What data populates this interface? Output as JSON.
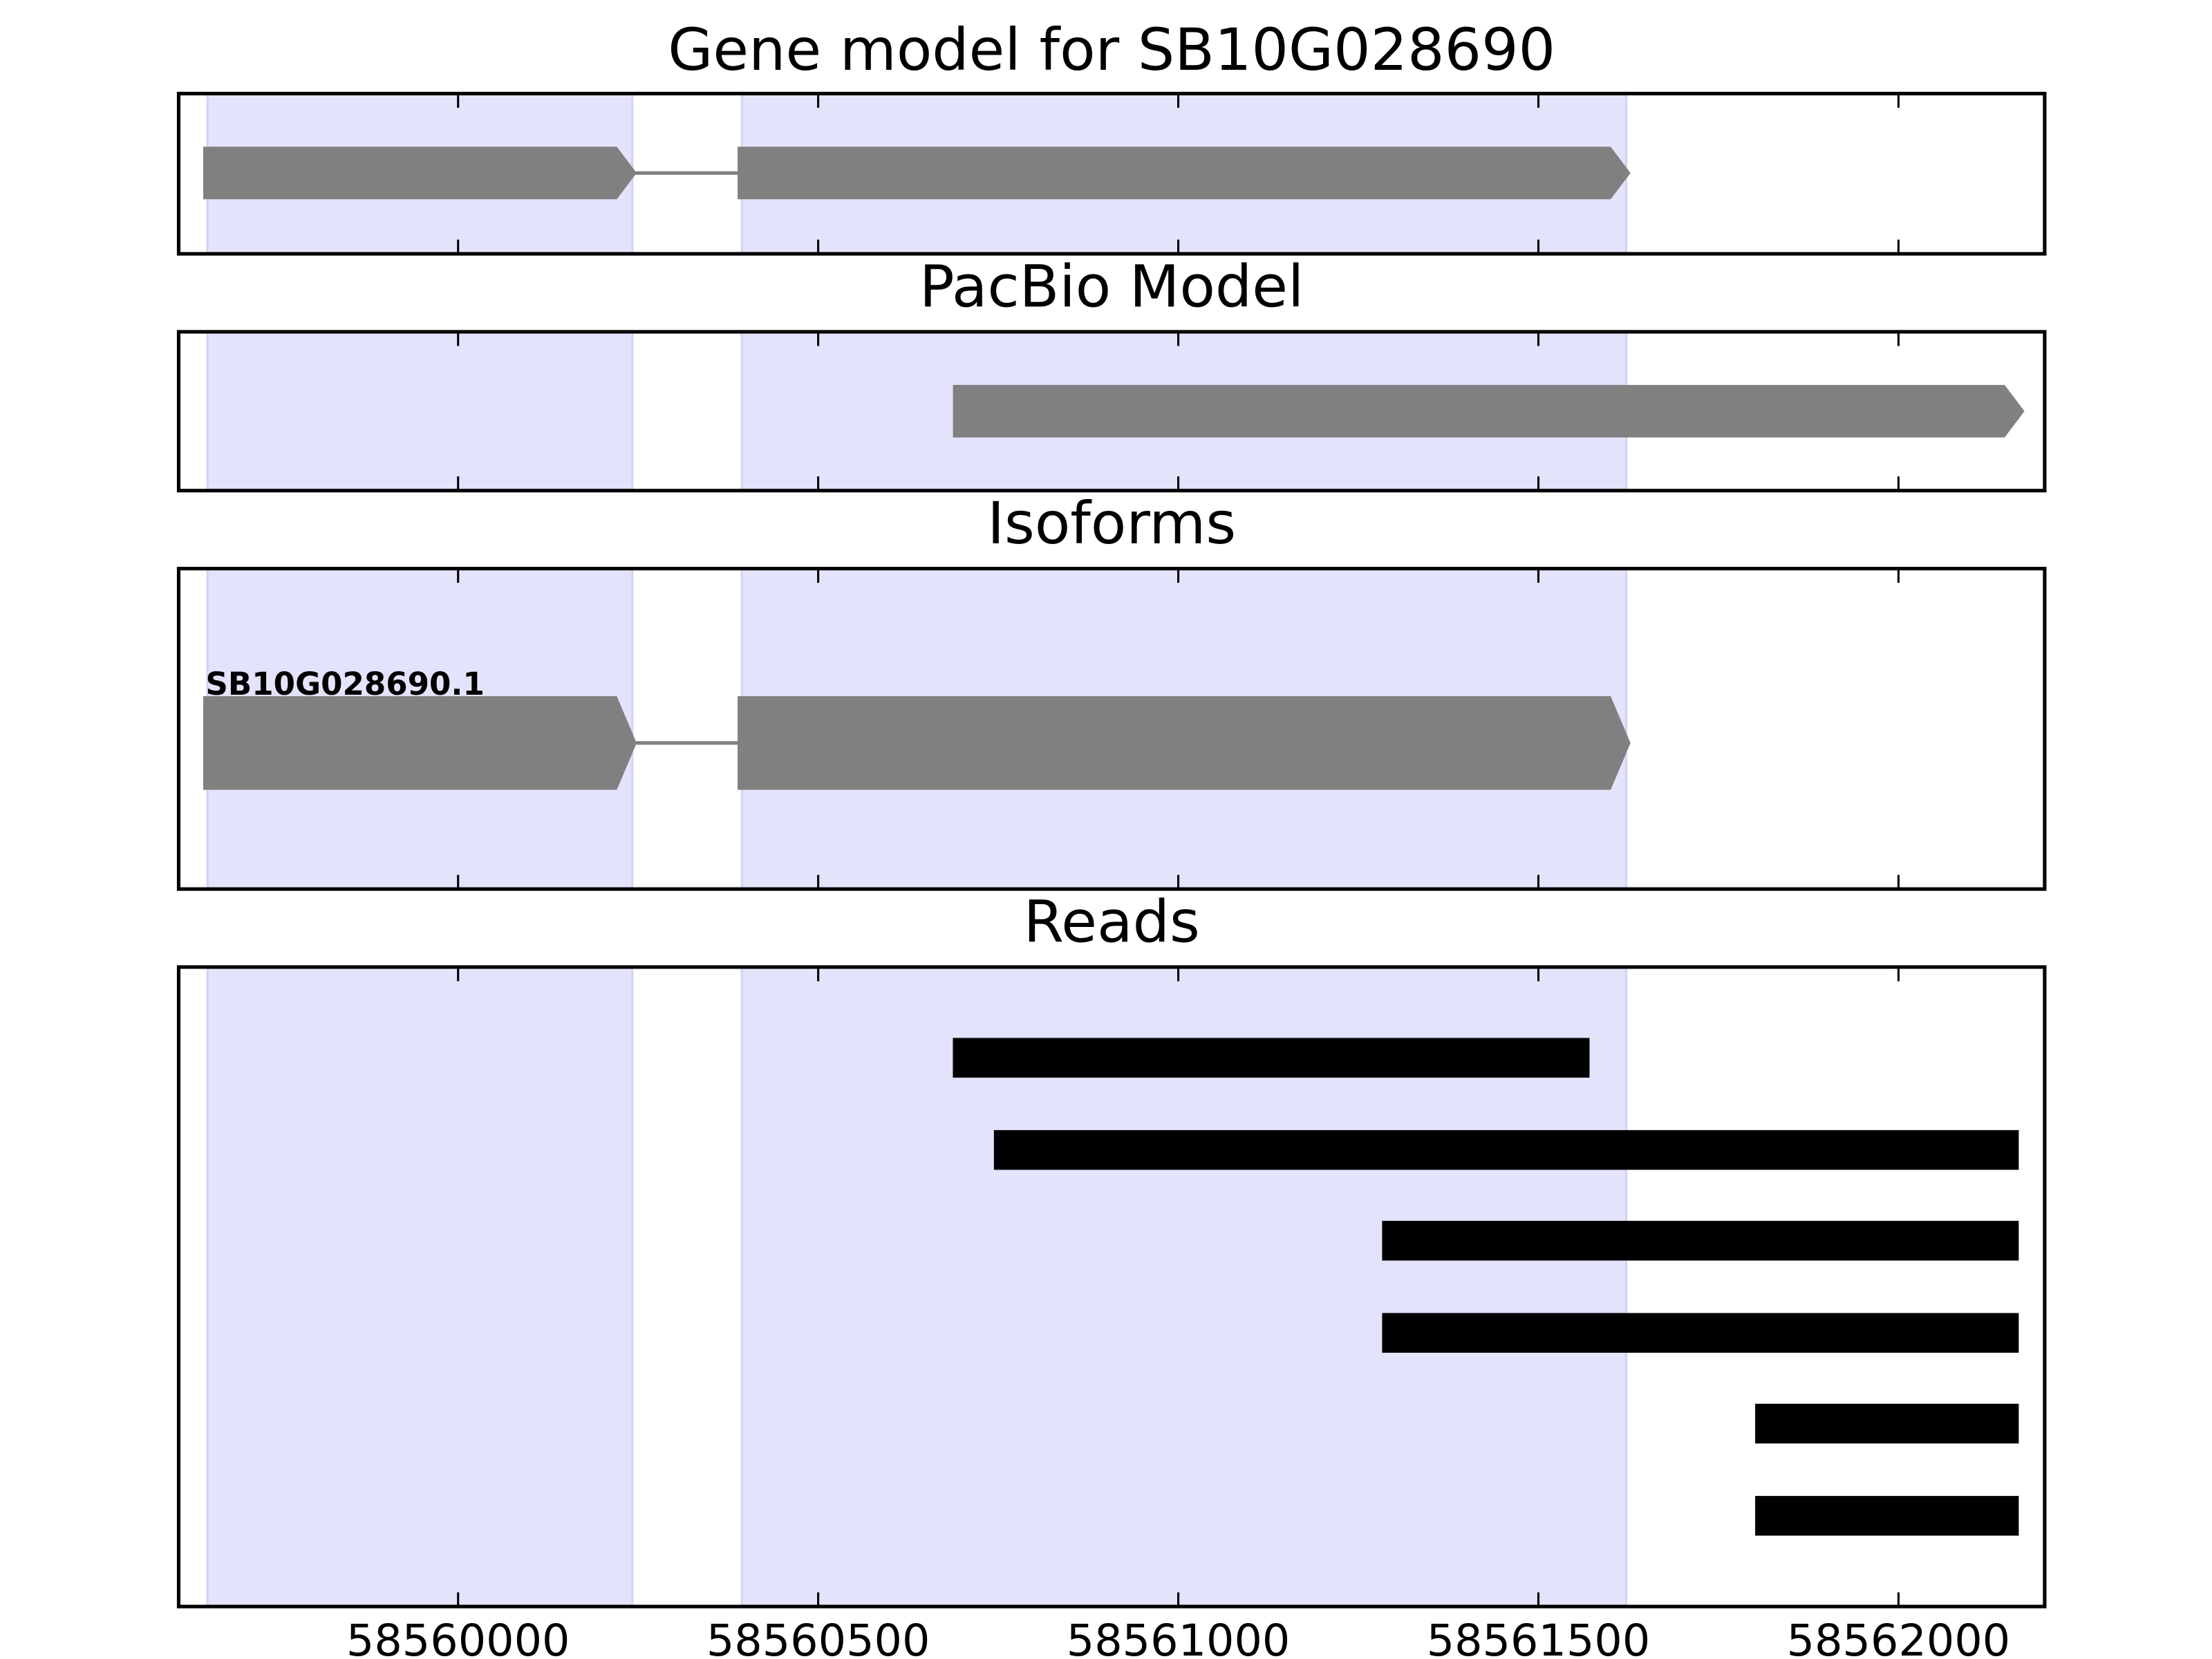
{
  "chart_data": [
    {
      "type": "gene",
      "title": "Gene model for SB10G028690",
      "xlim": [
        58559612,
        58562203
      ],
      "xticks": [
        58560000,
        58560500,
        58561000,
        58561500,
        58562000
      ],
      "shaded": [
        [
          58559652,
          58560242
        ],
        [
          58560394,
          58561622
        ]
      ],
      "exons": [
        [
          58559652,
          58560242
        ],
        [
          58560394,
          58561622
        ]
      ]
    },
    {
      "type": "gene",
      "title": "PacBio Model",
      "xlim": [
        58559612,
        58562203
      ],
      "xticks": [
        58560000,
        58560500,
        58561000,
        58561500,
        58562000
      ],
      "shaded": [
        [
          58559652,
          58560242
        ],
        [
          58560394,
          58561622
        ]
      ],
      "exons": [
        [
          58560693,
          58562169
        ]
      ]
    },
    {
      "type": "gene",
      "title": "Isoforms",
      "name": "SB10G028690.1",
      "xlim": [
        58559612,
        58562203
      ],
      "xticks": [
        58560000,
        58560500,
        58561000,
        58561500,
        58562000
      ],
      "shaded": [
        [
          58559652,
          58560242
        ],
        [
          58560394,
          58561622
        ]
      ],
      "exons": [
        [
          58559652,
          58560242
        ],
        [
          58560394,
          58561622
        ]
      ]
    },
    {
      "type": "reads",
      "title": "Reads",
      "xlim": [
        58559612,
        58562203
      ],
      "xticks": [
        58560000,
        58560500,
        58561000,
        58561500,
        58562000
      ],
      "shaded": [
        [
          58559652,
          58560242
        ],
        [
          58560394,
          58561622
        ]
      ],
      "reads": [
        [
          58560687,
          58561571
        ],
        [
          58560744,
          58562167
        ],
        [
          58561283,
          58562167
        ],
        [
          58561283,
          58562167
        ],
        [
          58561801,
          58562167
        ],
        [
          58561801,
          58562167
        ]
      ]
    }
  ]
}
